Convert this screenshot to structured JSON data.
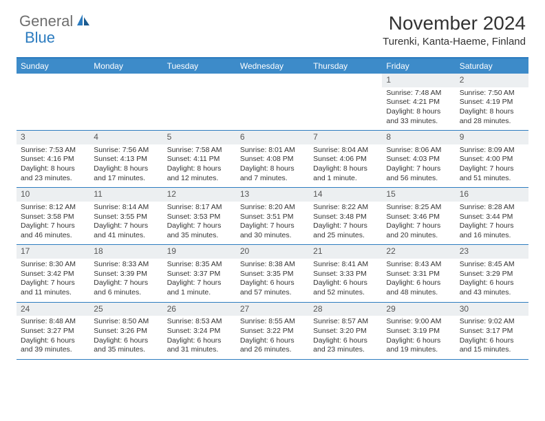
{
  "logo": {
    "text1": "General",
    "text2": "Blue"
  },
  "title": "November 2024",
  "location": "Turenki, Kanta-Haeme, Finland",
  "colors": {
    "header_bg": "#3d8bc9",
    "border": "#2b7bbf",
    "daynum_bg": "#eceff1",
    "logo_gray": "#6e6e6e",
    "logo_blue": "#2b7bbf"
  },
  "weekdays": [
    "Sunday",
    "Monday",
    "Tuesday",
    "Wednesday",
    "Thursday",
    "Friday",
    "Saturday"
  ],
  "weeks": [
    [
      {
        "n": "",
        "sr": "",
        "ss": "",
        "d1": "",
        "d2": ""
      },
      {
        "n": "",
        "sr": "",
        "ss": "",
        "d1": "",
        "d2": ""
      },
      {
        "n": "",
        "sr": "",
        "ss": "",
        "d1": "",
        "d2": ""
      },
      {
        "n": "",
        "sr": "",
        "ss": "",
        "d1": "",
        "d2": ""
      },
      {
        "n": "",
        "sr": "",
        "ss": "",
        "d1": "",
        "d2": ""
      },
      {
        "n": "1",
        "sr": "Sunrise: 7:48 AM",
        "ss": "Sunset: 4:21 PM",
        "d1": "Daylight: 8 hours",
        "d2": "and 33 minutes."
      },
      {
        "n": "2",
        "sr": "Sunrise: 7:50 AM",
        "ss": "Sunset: 4:19 PM",
        "d1": "Daylight: 8 hours",
        "d2": "and 28 minutes."
      }
    ],
    [
      {
        "n": "3",
        "sr": "Sunrise: 7:53 AM",
        "ss": "Sunset: 4:16 PM",
        "d1": "Daylight: 8 hours",
        "d2": "and 23 minutes."
      },
      {
        "n": "4",
        "sr": "Sunrise: 7:56 AM",
        "ss": "Sunset: 4:13 PM",
        "d1": "Daylight: 8 hours",
        "d2": "and 17 minutes."
      },
      {
        "n": "5",
        "sr": "Sunrise: 7:58 AM",
        "ss": "Sunset: 4:11 PM",
        "d1": "Daylight: 8 hours",
        "d2": "and 12 minutes."
      },
      {
        "n": "6",
        "sr": "Sunrise: 8:01 AM",
        "ss": "Sunset: 4:08 PM",
        "d1": "Daylight: 8 hours",
        "d2": "and 7 minutes."
      },
      {
        "n": "7",
        "sr": "Sunrise: 8:04 AM",
        "ss": "Sunset: 4:06 PM",
        "d1": "Daylight: 8 hours",
        "d2": "and 1 minute."
      },
      {
        "n": "8",
        "sr": "Sunrise: 8:06 AM",
        "ss": "Sunset: 4:03 PM",
        "d1": "Daylight: 7 hours",
        "d2": "and 56 minutes."
      },
      {
        "n": "9",
        "sr": "Sunrise: 8:09 AM",
        "ss": "Sunset: 4:00 PM",
        "d1": "Daylight: 7 hours",
        "d2": "and 51 minutes."
      }
    ],
    [
      {
        "n": "10",
        "sr": "Sunrise: 8:12 AM",
        "ss": "Sunset: 3:58 PM",
        "d1": "Daylight: 7 hours",
        "d2": "and 46 minutes."
      },
      {
        "n": "11",
        "sr": "Sunrise: 8:14 AM",
        "ss": "Sunset: 3:55 PM",
        "d1": "Daylight: 7 hours",
        "d2": "and 41 minutes."
      },
      {
        "n": "12",
        "sr": "Sunrise: 8:17 AM",
        "ss": "Sunset: 3:53 PM",
        "d1": "Daylight: 7 hours",
        "d2": "and 35 minutes."
      },
      {
        "n": "13",
        "sr": "Sunrise: 8:20 AM",
        "ss": "Sunset: 3:51 PM",
        "d1": "Daylight: 7 hours",
        "d2": "and 30 minutes."
      },
      {
        "n": "14",
        "sr": "Sunrise: 8:22 AM",
        "ss": "Sunset: 3:48 PM",
        "d1": "Daylight: 7 hours",
        "d2": "and 25 minutes."
      },
      {
        "n": "15",
        "sr": "Sunrise: 8:25 AM",
        "ss": "Sunset: 3:46 PM",
        "d1": "Daylight: 7 hours",
        "d2": "and 20 minutes."
      },
      {
        "n": "16",
        "sr": "Sunrise: 8:28 AM",
        "ss": "Sunset: 3:44 PM",
        "d1": "Daylight: 7 hours",
        "d2": "and 16 minutes."
      }
    ],
    [
      {
        "n": "17",
        "sr": "Sunrise: 8:30 AM",
        "ss": "Sunset: 3:42 PM",
        "d1": "Daylight: 7 hours",
        "d2": "and 11 minutes."
      },
      {
        "n": "18",
        "sr": "Sunrise: 8:33 AM",
        "ss": "Sunset: 3:39 PM",
        "d1": "Daylight: 7 hours",
        "d2": "and 6 minutes."
      },
      {
        "n": "19",
        "sr": "Sunrise: 8:35 AM",
        "ss": "Sunset: 3:37 PM",
        "d1": "Daylight: 7 hours",
        "d2": "and 1 minute."
      },
      {
        "n": "20",
        "sr": "Sunrise: 8:38 AM",
        "ss": "Sunset: 3:35 PM",
        "d1": "Daylight: 6 hours",
        "d2": "and 57 minutes."
      },
      {
        "n": "21",
        "sr": "Sunrise: 8:41 AM",
        "ss": "Sunset: 3:33 PM",
        "d1": "Daylight: 6 hours",
        "d2": "and 52 minutes."
      },
      {
        "n": "22",
        "sr": "Sunrise: 8:43 AM",
        "ss": "Sunset: 3:31 PM",
        "d1": "Daylight: 6 hours",
        "d2": "and 48 minutes."
      },
      {
        "n": "23",
        "sr": "Sunrise: 8:45 AM",
        "ss": "Sunset: 3:29 PM",
        "d1": "Daylight: 6 hours",
        "d2": "and 43 minutes."
      }
    ],
    [
      {
        "n": "24",
        "sr": "Sunrise: 8:48 AM",
        "ss": "Sunset: 3:27 PM",
        "d1": "Daylight: 6 hours",
        "d2": "and 39 minutes."
      },
      {
        "n": "25",
        "sr": "Sunrise: 8:50 AM",
        "ss": "Sunset: 3:26 PM",
        "d1": "Daylight: 6 hours",
        "d2": "and 35 minutes."
      },
      {
        "n": "26",
        "sr": "Sunrise: 8:53 AM",
        "ss": "Sunset: 3:24 PM",
        "d1": "Daylight: 6 hours",
        "d2": "and 31 minutes."
      },
      {
        "n": "27",
        "sr": "Sunrise: 8:55 AM",
        "ss": "Sunset: 3:22 PM",
        "d1": "Daylight: 6 hours",
        "d2": "and 26 minutes."
      },
      {
        "n": "28",
        "sr": "Sunrise: 8:57 AM",
        "ss": "Sunset: 3:20 PM",
        "d1": "Daylight: 6 hours",
        "d2": "and 23 minutes."
      },
      {
        "n": "29",
        "sr": "Sunrise: 9:00 AM",
        "ss": "Sunset: 3:19 PM",
        "d1": "Daylight: 6 hours",
        "d2": "and 19 minutes."
      },
      {
        "n": "30",
        "sr": "Sunrise: 9:02 AM",
        "ss": "Sunset: 3:17 PM",
        "d1": "Daylight: 6 hours",
        "d2": "and 15 minutes."
      }
    ]
  ]
}
